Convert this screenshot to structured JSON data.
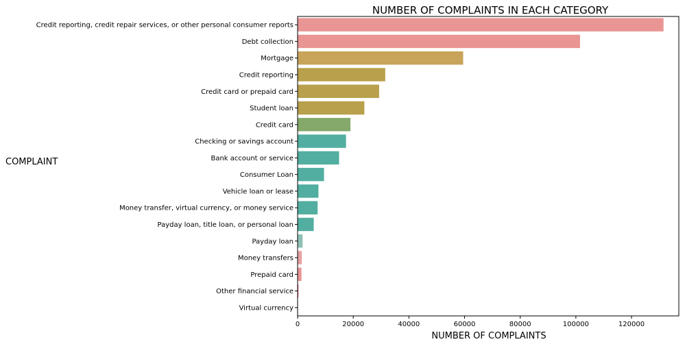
{
  "chart_data": {
    "type": "bar",
    "orientation": "horizontal",
    "title": "NUMBER OF COMPLAINTS IN EACH CATEGORY",
    "xlabel": "NUMBER OF COMPLAINTS",
    "ylabel": "COMPLAINT",
    "xlim": [
      0,
      137000
    ],
    "xticks": [
      "0",
      "20000",
      "40000",
      "60000",
      "80000",
      "100000",
      "120000"
    ],
    "grid": false,
    "categories": [
      "Credit reporting, credit repair services, or other personal consumer reports",
      "Debt collection",
      "Mortgage",
      "Credit reporting",
      "Credit card or prepaid card",
      "Student loan",
      "Credit card",
      "Checking or savings account",
      "Bank account or service",
      "Consumer Loan",
      "Vehicle loan or lease",
      "Money transfer, virtual currency, or money service",
      "Payday loan, title loan, or personal loan",
      "Payday loan",
      "Money transfers",
      "Prepaid card",
      "Other financial service",
      "Virtual currency"
    ],
    "values": [
      131500,
      101500,
      59500,
      31500,
      29300,
      24000,
      19000,
      17400,
      14900,
      9500,
      7500,
      7200,
      5800,
      1800,
      1500,
      1400,
      300,
      20
    ],
    "colors": [
      "#e89594",
      "#e89594",
      "#c8a35a",
      "#b8a04c",
      "#b8a04c",
      "#b8a04c",
      "#84a96a",
      "#52aea0",
      "#52aea0",
      "#52aea0",
      "#52aea0",
      "#52aea0",
      "#52aea0",
      "#8fc0b5",
      "#e8a0a0",
      "#e89594",
      "#e0607a",
      "#e089a0"
    ]
  }
}
